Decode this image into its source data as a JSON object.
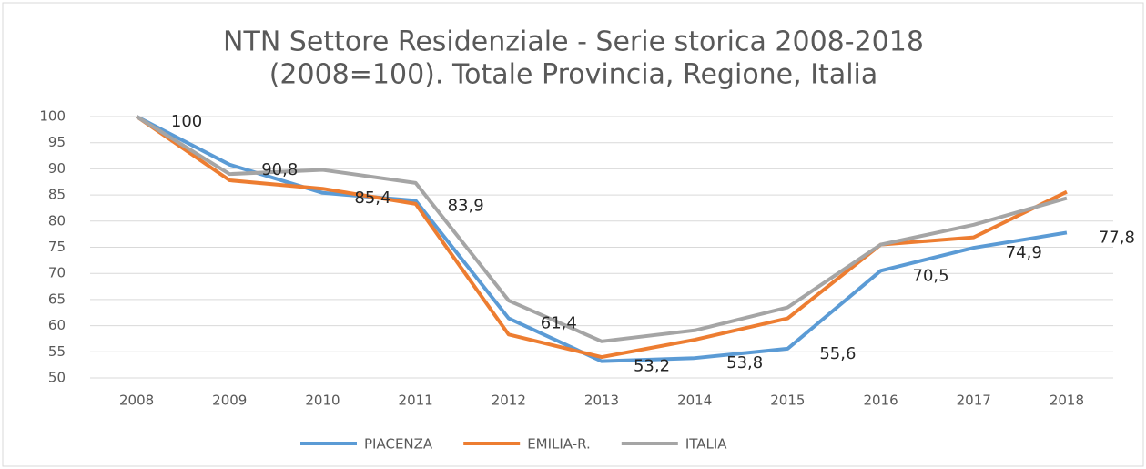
{
  "chart_data": {
    "type": "line",
    "title": [
      "NTN Settore Residenziale - Serie storica 2008-2018",
      "(2008=100). Totale Provincia, Regione, Italia"
    ],
    "categories": [
      "2008",
      "2009",
      "2010",
      "2011",
      "2012",
      "2013",
      "2014",
      "2015",
      "2016",
      "2017",
      "2018"
    ],
    "series": [
      {
        "name": "PIACENZA",
        "color": "#5b9bd5",
        "values": [
          100,
          90.8,
          85.4,
          83.9,
          61.4,
          53.2,
          53.8,
          55.6,
          70.5,
          74.9,
          77.8
        ],
        "value_labels": [
          "100",
          "90,8",
          "85,4",
          "83,9",
          "61,4",
          "53,2",
          "53,8",
          "55,6",
          "70,5",
          "74,9",
          "77,8"
        ]
      },
      {
        "name": "EMILIA-R.",
        "color": "#ed7d31",
        "values": [
          100,
          87.8,
          86.2,
          83.3,
          58.3,
          54.0,
          57.3,
          61.4,
          75.5,
          76.9,
          85.6
        ]
      },
      {
        "name": "ITALIA",
        "color": "#a5a5a5",
        "values": [
          100,
          89.0,
          89.8,
          87.3,
          64.8,
          57.0,
          59.1,
          63.5,
          75.5,
          79.3,
          84.4
        ]
      }
    ],
    "ylim": [
      50,
      100
    ],
    "yticks": [
      50,
      55,
      60,
      65,
      70,
      75,
      80,
      85,
      90,
      95,
      100
    ],
    "grid": true,
    "legend": "bottom"
  }
}
